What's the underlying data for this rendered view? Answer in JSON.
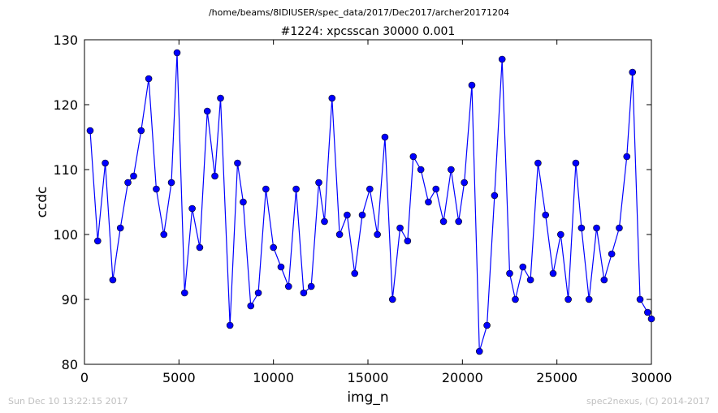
{
  "page": {
    "path_title": "/home/beams/8IDIUSER/spec_data/2017/Dec2017/archer20171204",
    "footer_left": "Sun Dec 10 13:22:15 2017",
    "footer_right": "spec2nexus, (C) 2014-2017"
  },
  "chart_data": {
    "type": "line",
    "title": "#1224: xpcsscan 30000 0.001",
    "xlabel": "img_n",
    "ylabel": "ccdc",
    "xlim": [
      0,
      30000
    ],
    "ylim": [
      80,
      130
    ],
    "xticks": [
      0,
      5000,
      10000,
      15000,
      20000,
      25000,
      30000
    ],
    "yticks": [
      80,
      90,
      100,
      110,
      120,
      130
    ],
    "grid": false,
    "marker": "circle",
    "colors": {
      "series": "#0000ff",
      "marker_edge": "#000000",
      "axes": "#000000",
      "footer_text": "#c0c0c0"
    },
    "series": [
      {
        "name": "",
        "x": [
          300,
          700,
          1100,
          1500,
          1900,
          2300,
          2600,
          3000,
          3400,
          3800,
          4200,
          4600,
          4900,
          5300,
          5700,
          6100,
          6500,
          6900,
          7200,
          7700,
          8100,
          8400,
          8800,
          9200,
          9600,
          10000,
          10400,
          10800,
          11200,
          11600,
          12000,
          12400,
          12700,
          13100,
          13500,
          13900,
          14300,
          14700,
          15100,
          15500,
          15900,
          16300,
          16700,
          17100,
          17400,
          17800,
          18200,
          18600,
          19000,
          19400,
          19800,
          20100,
          20500,
          20900,
          21300,
          21700,
          22100,
          22500,
          22800,
          23200,
          23600,
          24000,
          24400,
          24800,
          25200,
          25600,
          26000,
          26300,
          26700,
          27100,
          27500,
          27900,
          28300,
          28700,
          29000,
          29400,
          29800,
          30000
        ],
        "y": [
          116,
          99,
          111,
          93,
          101,
          108,
          109,
          116,
          124,
          107,
          100,
          108,
          128,
          91,
          104,
          98,
          119,
          109,
          121,
          86,
          111,
          105,
          89,
          91,
          107,
          98,
          95,
          92,
          107,
          91,
          92,
          108,
          102,
          121,
          100,
          103,
          94,
          103,
          107,
          100,
          115,
          90,
          101,
          99,
          112,
          110,
          105,
          107,
          102,
          110,
          102,
          108,
          123,
          82,
          86,
          106,
          127,
          94,
          90,
          95,
          93,
          111,
          103,
          94,
          100,
          90,
          111,
          101,
          90,
          101,
          93,
          97,
          101,
          112,
          125,
          90,
          88,
          87
        ]
      }
    ]
  }
}
